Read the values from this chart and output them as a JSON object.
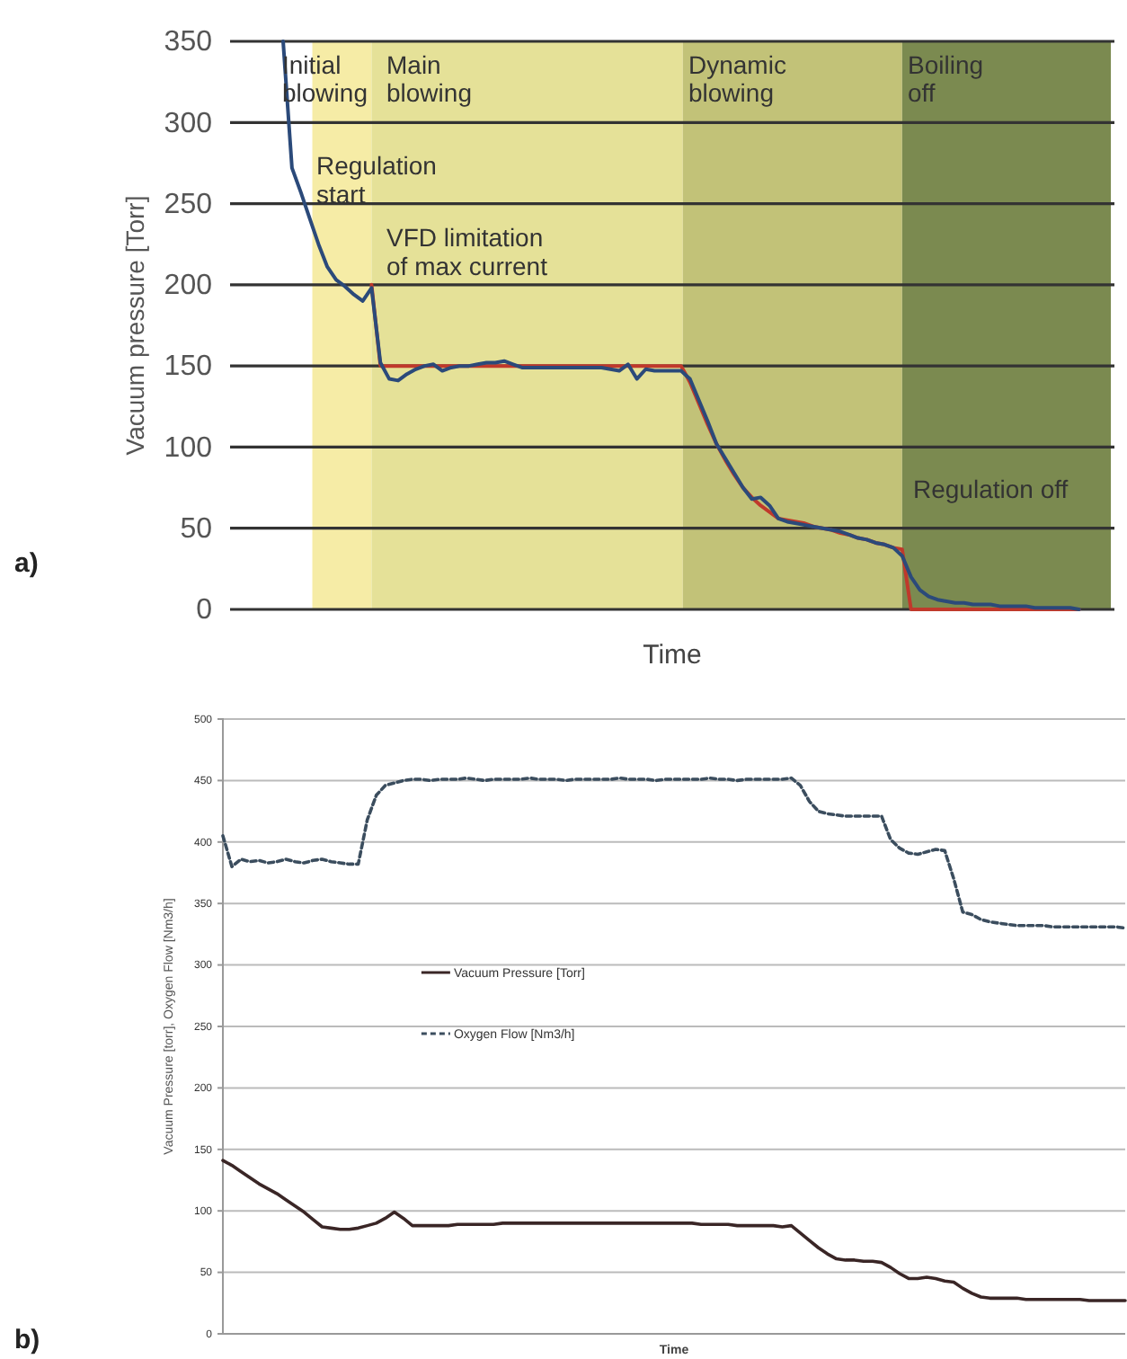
{
  "chart_data": [
    {
      "type": "line",
      "ylabel": "Vacuum pressure [Torr]",
      "xlabel": "Time",
      "categories": [
        null,
        null,
        null,
        null,
        null,
        null,
        null,
        null,
        null,
        null,
        null,
        null,
        null,
        null,
        null,
        null,
        null,
        null,
        null,
        null,
        null,
        null,
        null,
        null,
        null,
        null,
        null,
        null,
        null,
        null,
        null,
        null,
        null,
        null,
        null,
        null,
        null,
        null,
        null,
        null,
        null,
        null,
        null,
        null,
        null,
        null,
        null,
        null,
        null,
        null,
        null,
        null,
        null,
        null,
        null,
        null,
        null,
        null,
        null,
        null,
        null,
        null,
        null,
        null,
        null,
        null,
        null,
        null,
        null,
        null,
        null,
        null,
        null,
        null,
        null,
        null,
        null,
        null,
        null,
        null,
        null,
        null,
        null,
        null,
        null,
        null,
        null,
        null,
        null,
        null,
        null,
        null,
        null,
        null,
        null,
        null,
        null,
        null,
        null,
        null,
        null
      ],
      "ylim": [
        0,
        350
      ],
      "yticks": [
        0,
        50,
        100,
        150,
        200,
        250,
        300,
        350
      ],
      "grid": "y",
      "tick_labels": "y",
      "legend": false,
      "annotations": [
        "a)",
        "Initial blowing",
        "Main blowing",
        "Dynamic blowing",
        "Boiling off",
        "Regulation start",
        "VFD limitation of max current",
        "Regulation off"
      ],
      "series": [
        {
          "color": "#c0392b",
          "values": [
            null,
            null,
            null,
            null,
            null,
            null,
            null,
            null,
            null,
            null,
            null,
            null,
            null,
            null,
            null,
            null,
            200,
            150,
            150,
            150,
            150,
            150,
            150,
            150,
            150,
            150,
            150,
            150,
            150,
            150,
            150,
            150,
            150,
            150,
            150,
            150,
            150,
            150,
            150,
            150,
            150,
            150,
            150,
            150,
            150,
            150,
            150,
            150,
            150,
            150,
            150,
            150,
            140,
            127,
            114,
            102,
            92,
            83,
            75,
            69,
            64,
            60,
            56,
            55,
            54,
            53,
            51,
            50,
            49,
            47,
            46,
            44,
            43,
            41,
            40,
            38,
            37,
            0,
            0,
            0,
            0,
            0,
            0,
            0,
            0,
            0,
            0,
            0,
            0,
            0,
            0,
            0,
            0,
            0,
            0,
            0,
            0,
            null,
            null,
            null,
            null
          ]
        },
        {
          "color": "#2b4a7a",
          "values": [
            null,
            null,
            null,
            null,
            null,
            null,
            350,
            272,
            257,
            241,
            225,
            211,
            203,
            199,
            194,
            190,
            198,
            152,
            142,
            141,
            145,
            148,
            150,
            151,
            147,
            149,
            150,
            150,
            151,
            152,
            152,
            153,
            151,
            149,
            149,
            149,
            149,
            149,
            149,
            149,
            149,
            149,
            149,
            148,
            147,
            151,
            142,
            148,
            147,
            147,
            147,
            147,
            142,
            129,
            116,
            102,
            93,
            84,
            75,
            68,
            69,
            64,
            56,
            54,
            53,
            52,
            51,
            50,
            49,
            48,
            46,
            44,
            43,
            41,
            40,
            38,
            33,
            20,
            12,
            8,
            6,
            5,
            4,
            4,
            3,
            3,
            3,
            2,
            2,
            2,
            2,
            1,
            1,
            1,
            1,
            1,
            0,
            null,
            null,
            null,
            null
          ]
        }
      ]
    },
    {
      "type": "line",
      "ylabel": "Vacuum Pressure [torr],  Oxygen Flow [Nm3/h]",
      "xlabel": "Time",
      "categories": [
        null,
        null,
        null,
        null,
        null,
        null,
        null,
        null,
        null,
        null,
        null,
        null,
        null,
        null,
        null,
        null,
        null,
        null,
        null,
        null,
        null,
        null,
        null,
        null,
        null,
        null,
        null,
        null,
        null,
        null,
        null,
        null,
        null,
        null,
        null,
        null,
        null,
        null,
        null,
        null,
        null,
        null,
        null,
        null,
        null,
        null,
        null,
        null,
        null,
        null,
        null,
        null,
        null,
        null,
        null,
        null,
        null,
        null,
        null,
        null,
        null,
        null,
        null,
        null,
        null,
        null,
        null,
        null,
        null,
        null,
        null,
        null,
        null,
        null,
        null,
        null,
        null,
        null,
        null,
        null,
        null,
        null,
        null,
        null,
        null,
        null,
        null,
        null,
        null,
        null,
        null,
        null,
        null,
        null,
        null,
        null,
        null,
        null,
        null,
        null,
        null
      ],
      "ylim": [
        0,
        500
      ],
      "yticks": [
        0,
        50,
        100,
        150,
        200,
        250,
        300,
        350,
        400,
        450,
        500
      ],
      "grid": "y",
      "tick_labels": "y",
      "legend": "center",
      "annotations": [
        "b)"
      ],
      "series": [
        {
          "name": "Vacuum Pressure [Torr]",
          "color": "#3a2626",
          "line_style": "solid",
          "values": [
            141,
            137,
            132,
            127,
            122,
            118,
            114,
            109,
            104,
            99,
            93,
            87,
            86,
            85,
            85,
            86,
            88,
            90,
            94,
            99,
            94,
            88,
            88,
            88,
            88,
            88,
            89,
            89,
            89,
            89,
            89,
            90,
            90,
            90,
            90,
            90,
            90,
            90,
            90,
            90,
            90,
            90,
            90,
            90,
            90,
            90,
            90,
            90,
            90,
            90,
            90,
            90,
            90,
            89,
            89,
            89,
            89,
            88,
            88,
            88,
            88,
            88,
            87,
            88,
            82,
            76,
            70,
            65,
            61,
            60,
            60,
            59,
            59,
            58,
            54,
            49,
            45,
            45,
            46,
            45,
            43,
            42,
            37,
            33,
            30,
            29,
            29,
            29,
            29,
            28,
            28,
            28,
            28,
            28,
            28,
            28,
            27,
            27,
            27,
            27,
            27
          ]
        },
        {
          "name": "Oxygen Flow [Nm3/h]",
          "color": "#3b4d5e",
          "line_style": "dashed",
          "values": [
            405,
            380,
            386,
            384,
            385,
            383,
            384,
            386,
            384,
            383,
            385,
            386,
            384,
            383,
            382,
            382,
            418,
            438,
            446,
            448,
            450,
            451,
            451,
            450,
            451,
            451,
            451,
            452,
            451,
            450,
            451,
            451,
            451,
            451,
            452,
            451,
            451,
            451,
            450,
            451,
            451,
            451,
            451,
            451,
            452,
            451,
            451,
            451,
            450,
            451,
            451,
            451,
            451,
            451,
            452,
            451,
            451,
            450,
            451,
            451,
            451,
            451,
            451,
            452,
            446,
            433,
            425,
            423,
            422,
            421,
            421,
            421,
            421,
            421,
            402,
            395,
            391,
            390,
            392,
            394,
            393,
            370,
            343,
            341,
            337,
            335,
            334,
            333,
            332,
            332,
            332,
            332,
            331,
            331,
            331,
            331,
            331,
            331,
            331,
            331,
            330
          ]
        }
      ]
    }
  ]
}
